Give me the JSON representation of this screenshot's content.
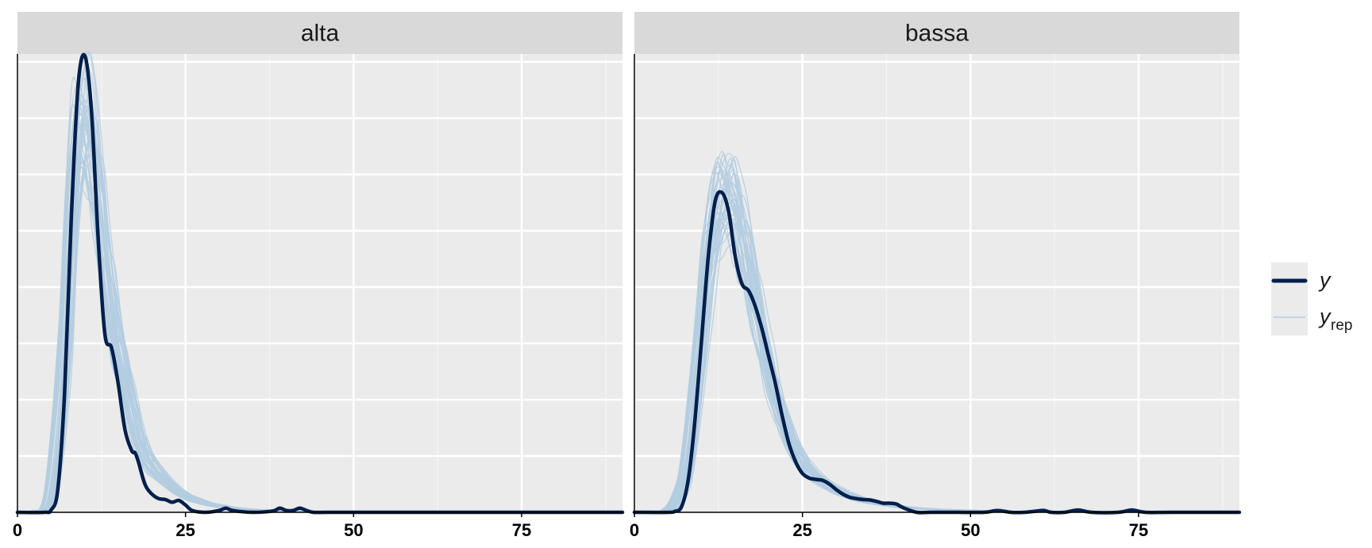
{
  "chart_data": {
    "type": "line",
    "title": "",
    "xlabel": "",
    "ylabel": "",
    "xlim": [
      0,
      90
    ],
    "ylim": [
      0,
      1
    ],
    "x_ticks": [
      0,
      25,
      50,
      75
    ],
    "x_tick_labels": [
      "0",
      "25",
      "50",
      "75"
    ],
    "y_tick_labels_shown": false,
    "grid": true,
    "legend_position": "right",
    "legend": [
      {
        "label": "y",
        "subscript": "",
        "color": "#011f4b",
        "style": "thick"
      },
      {
        "label": "y",
        "subscript": "rep",
        "color": "#b3cde0",
        "style": "thin"
      }
    ],
    "panels": [
      {
        "strip": "alta",
        "series": [
          {
            "name": "y",
            "x": [
              0,
              4,
              5,
              6,
              7,
              8,
              9,
              10,
              11,
              12,
              13,
              14,
              15,
              16,
              17,
              17.5,
              18,
              19,
              20,
              21,
              22,
              23,
              24,
              25,
              26,
              28,
              30,
              31,
              32,
              35,
              38,
              39,
              40,
              41,
              42,
              43,
              44,
              46,
              50,
              60,
              75,
              90
            ],
            "y": [
              0,
              0,
              0.005,
              0.05,
              0.26,
              0.64,
              0.93,
              1.0,
              0.88,
              0.6,
              0.39,
              0.36,
              0.28,
              0.18,
              0.135,
              0.13,
              0.11,
              0.06,
              0.04,
              0.03,
              0.028,
              0.022,
              0.026,
              0.016,
              0.004,
              0.0,
              0.004,
              0.009,
              0.004,
              0.0,
              0.003,
              0.009,
              0.004,
              0.004,
              0.009,
              0.004,
              0.0,
              0.0,
              0.0,
              0.0,
              0.0,
              0.0
            ]
          },
          {
            "name": "y_rep",
            "x": [
              0,
              3,
              5,
              7,
              8,
              9,
              10,
              11,
              12,
              13,
              14,
              15,
              16,
              17,
              18,
              19,
              20,
              22,
              24,
              26,
              28,
              30,
              33,
              36,
              40,
              45,
              50,
              55,
              60,
              70,
              80,
              90
            ],
            "y": [
              0,
              0.003,
              0.04,
              0.33,
              0.62,
              0.8,
              0.85,
              0.81,
              0.7,
              0.56,
              0.45,
              0.37,
              0.3,
              0.23,
              0.17,
              0.13,
              0.1,
              0.07,
              0.045,
              0.03,
              0.02,
              0.014,
              0.008,
              0.005,
              0.003,
              0.002,
              0.001,
              0.001,
              0.001,
              0.0,
              0.0,
              0.0
            ]
          }
        ]
      },
      {
        "strip": "bassa",
        "series": [
          {
            "name": "y",
            "x": [
              0,
              5,
              6,
              7,
              8,
              9,
              10,
              11,
              12,
              13,
              14,
              15,
              16,
              17,
              18,
              19,
              20,
              21,
              22,
              23,
              24,
              25,
              26,
              27,
              28,
              29,
              30,
              31,
              32,
              33,
              34,
              35,
              36,
              37,
              38,
              39,
              40,
              42,
              44,
              48,
              52,
              54,
              56,
              58,
              60,
              61,
              62,
              64,
              66,
              68,
              72,
              74,
              76,
              80,
              90
            ],
            "y": [
              0,
              0,
              0.002,
              0.012,
              0.07,
              0.2,
              0.38,
              0.56,
              0.68,
              0.7,
              0.66,
              0.56,
              0.5,
              0.485,
              0.45,
              0.4,
              0.34,
              0.28,
              0.21,
              0.15,
              0.11,
              0.085,
              0.075,
              0.072,
              0.07,
              0.062,
              0.05,
              0.04,
              0.033,
              0.03,
              0.028,
              0.027,
              0.024,
              0.02,
              0.02,
              0.018,
              0.01,
              0.0,
              0.0,
              0.0,
              0.0,
              0.004,
              0.0,
              0.0,
              0.003,
              0.004,
              0.0,
              0.0,
              0.005,
              0.0,
              0.0,
              0.005,
              0.0,
              0.0,
              0.0
            ]
          },
          {
            "name": "y_rep",
            "x": [
              0,
              5,
              7,
              8,
              9,
              10,
              11,
              12,
              13,
              14,
              15,
              16,
              17,
              18,
              19,
              20,
              21,
              22,
              24,
              26,
              28,
              30,
              33,
              36,
              40,
              45,
              50,
              55,
              60,
              70,
              80,
              90
            ],
            "y": [
              0,
              0.005,
              0.05,
              0.12,
              0.24,
              0.39,
              0.53,
              0.62,
              0.66,
              0.67,
              0.64,
              0.59,
              0.52,
              0.45,
              0.38,
              0.31,
              0.25,
              0.2,
              0.13,
              0.09,
              0.065,
              0.048,
              0.03,
              0.02,
              0.011,
              0.006,
              0.004,
              0.002,
              0.001,
              0.0,
              0.0,
              0.0
            ]
          }
        ]
      }
    ]
  }
}
